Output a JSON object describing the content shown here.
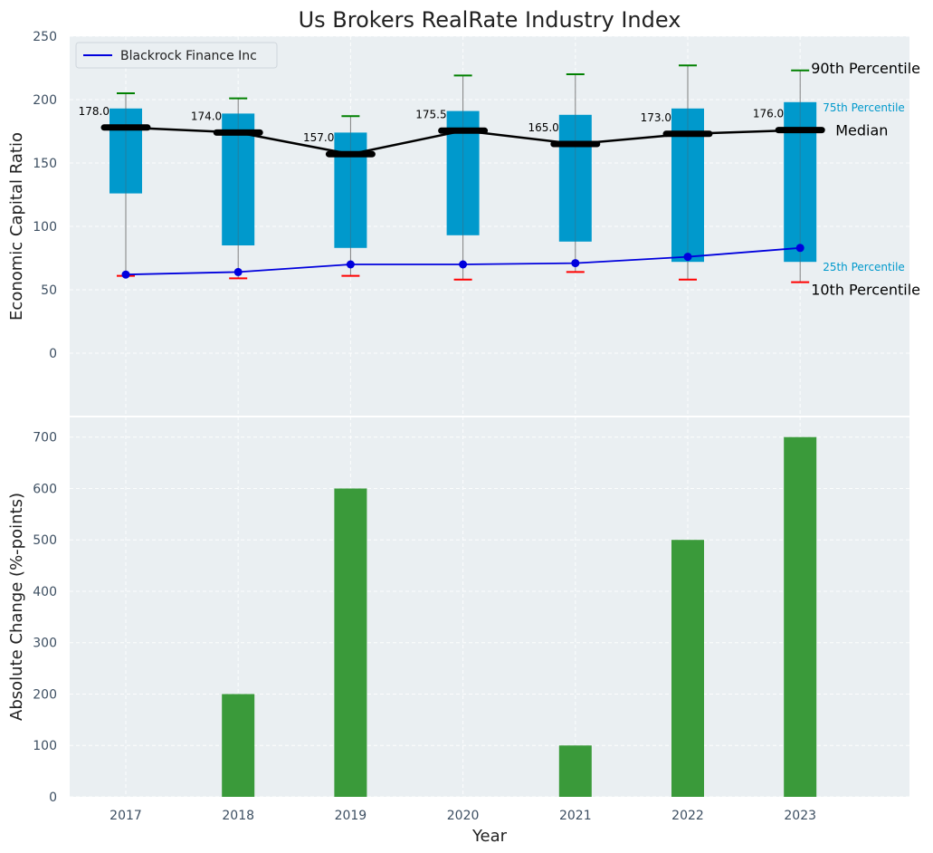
{
  "chart_data": [
    {
      "type": "box",
      "title": "Us Brokers RealRate Industry Index",
      "ylabel": "Economic Capital Ratio",
      "xlabel": "",
      "ylim": [
        -50,
        250
      ],
      "yticks": [
        0,
        50,
        100,
        150,
        200,
        250
      ],
      "grid": true,
      "categories": [
        "2017",
        "2018",
        "2019",
        "2020",
        "2021",
        "2022",
        "2023"
      ],
      "p10": [
        61,
        59,
        61,
        58,
        64,
        58,
        56
      ],
      "p25": [
        126,
        85,
        83,
        93,
        88,
        72,
        72
      ],
      "median": [
        178.0,
        174.0,
        157.0,
        175.5,
        165.0,
        173.0,
        176.0
      ],
      "p75": [
        193,
        189,
        174,
        191,
        188,
        193,
        198
      ],
      "p90": [
        205,
        201,
        187,
        219,
        220,
        227,
        223
      ],
      "median_labels": [
        "178.0",
        "174.0",
        "157.0",
        "175.5",
        "165.0",
        "173.0",
        "176.0"
      ],
      "series": [
        {
          "name": "Blackrock Finance Inc",
          "values": [
            62,
            64,
            70,
            70,
            71,
            76,
            83
          ]
        }
      ],
      "legend": {
        "position": "top-left",
        "entries": [
          "Blackrock Finance Inc"
        ]
      },
      "annotations": {
        "p90": "90th Percentile",
        "p75": "75th Percentile",
        "median": "Median",
        "p25": "25th Percentile",
        "p10": "10th Percentile"
      },
      "colors": {
        "box": "#0099cc",
        "median_line": "#000000",
        "series_line": "#0000dd",
        "p90_cap": "#008000",
        "p10_cap": "#ff0000",
        "annotation_cyan": "#0099cc",
        "plot_bg": "#eaeff2"
      }
    },
    {
      "type": "bar",
      "ylabel": "Absolute Change (%-points)",
      "xlabel": "Year",
      "ylim": [
        0,
        740
      ],
      "yticks": [
        0,
        100,
        200,
        300,
        400,
        500,
        600,
        700
      ],
      "grid": true,
      "categories": [
        "2017",
        "2018",
        "2019",
        "2020",
        "2021",
        "2022",
        "2023"
      ],
      "values": [
        0,
        200,
        600,
        0,
        100,
        500,
        700
      ],
      "colors": {
        "bar": "#3a9a3a",
        "plot_bg": "#eaeff2"
      }
    }
  ]
}
